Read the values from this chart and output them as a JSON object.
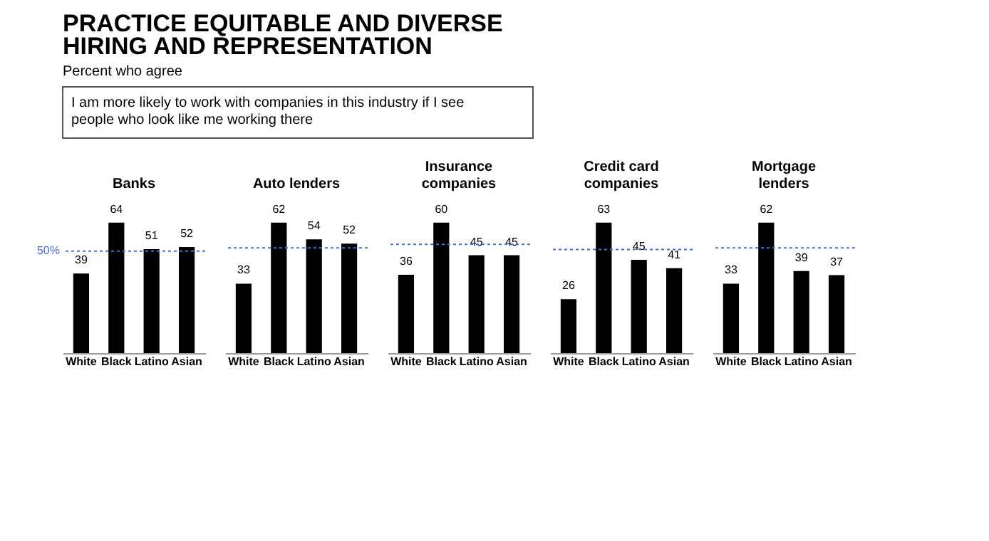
{
  "chart_data": [
    {
      "type": "other",
      "title": "PRACTICE EQUITABLE AND DIVERSE HIRING AND REPRESENTATION",
      "subtitle": "Percent who agree",
      "annotations": [
        "I am more likely to work with companies in this industry if I see people who look like me working there"
      ]
    },
    {
      "type": "bar",
      "title": "Banks",
      "categories": [
        "White",
        "Black",
        "Latino",
        "Asian"
      ],
      "values": [
        39,
        64,
        51,
        52
      ],
      "color": "#000000",
      "data_labels": true,
      "ref_lines": [
        {
          "axis": "y",
          "value": 50,
          "label": "50%",
          "color": "#4a6fd6",
          "line_style": "dotted"
        }
      ]
    },
    {
      "type": "bar",
      "title": "Auto lenders",
      "categories": [
        "White",
        "Black",
        "Latino",
        "Asian"
      ],
      "values": [
        33,
        62,
        54,
        52
      ],
      "color": "#000000",
      "data_labels": true,
      "ref_lines": [
        {
          "axis": "y",
          "value": 50,
          "color": "#4a6fd6",
          "line_style": "dotted"
        }
      ]
    },
    {
      "type": "bar",
      "title": "Insurance companies",
      "categories": [
        "White",
        "Black",
        "Latino",
        "Asian"
      ],
      "values": [
        36,
        60,
        45,
        45
      ],
      "color": "#000000",
      "data_labels": true,
      "ref_lines": [
        {
          "axis": "y",
          "value": 50,
          "color": "#4a6fd6",
          "line_style": "dotted"
        }
      ]
    },
    {
      "type": "bar",
      "title": "Credit card companies",
      "categories": [
        "White",
        "Black",
        "Latino",
        "Asian"
      ],
      "values": [
        26,
        63,
        45,
        41
      ],
      "color": "#000000",
      "data_labels": true,
      "ref_lines": [
        {
          "axis": "y",
          "value": 50,
          "color": "#4a6fd6",
          "line_style": "dotted"
        }
      ]
    },
    {
      "type": "bar",
      "title": "Mortgage lenders",
      "categories": [
        "White",
        "Black",
        "Latino",
        "Asian"
      ],
      "values": [
        33,
        62,
        39,
        37
      ],
      "color": "#000000",
      "data_labels": true,
      "ref_lines": [
        {
          "axis": "y",
          "value": 50,
          "color": "#4a6fd6",
          "line_style": "dotted"
        }
      ]
    }
  ]
}
